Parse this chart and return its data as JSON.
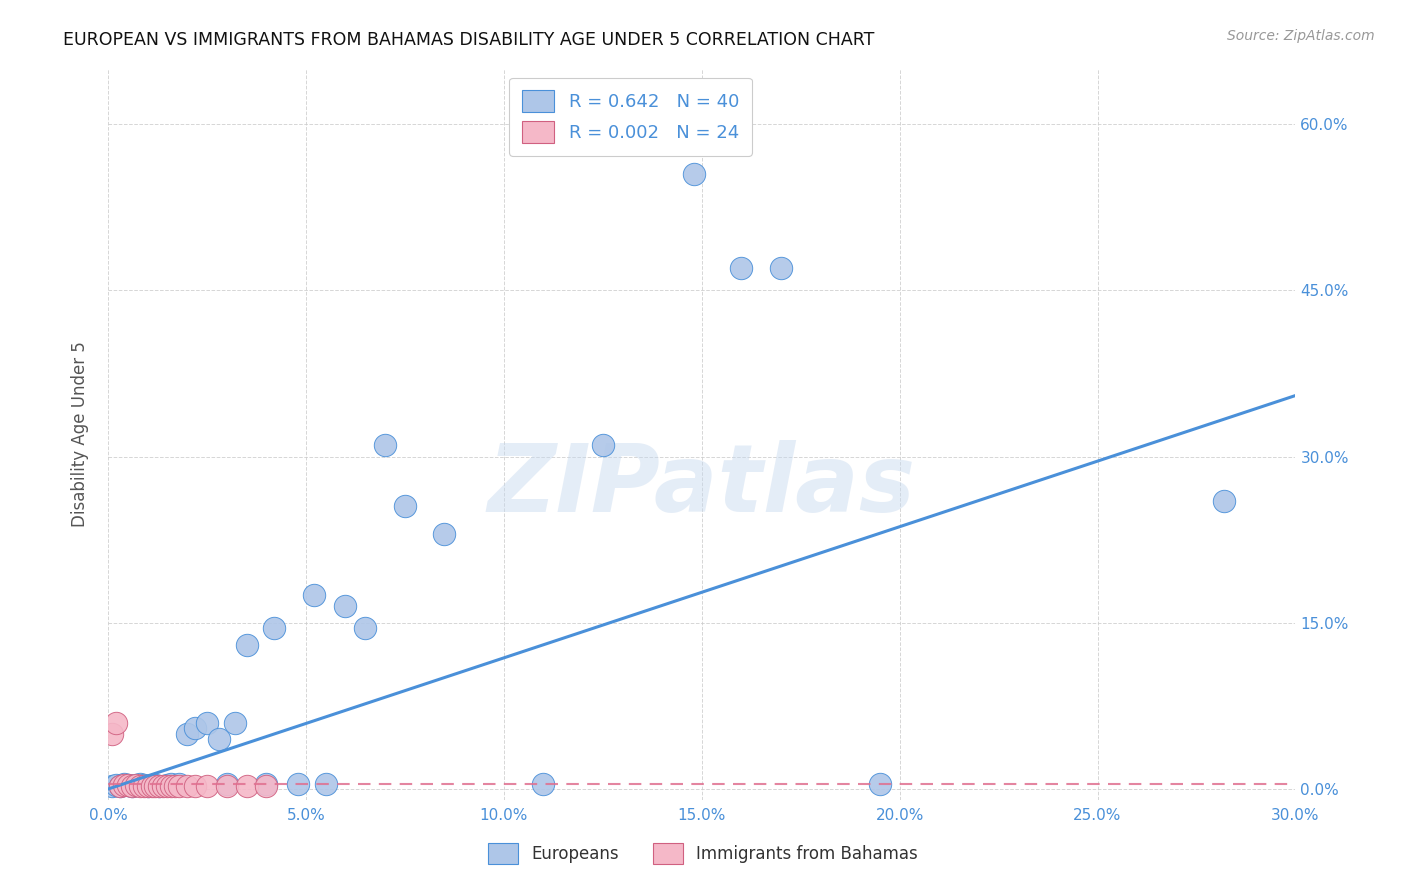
{
  "title": "EUROPEAN VS IMMIGRANTS FROM BAHAMAS DISABILITY AGE UNDER 5 CORRELATION CHART",
  "source": "Source: ZipAtlas.com",
  "ylabel": "Disability Age Under 5",
  "xlim": [
    0.0,
    0.3
  ],
  "ylim": [
    -0.01,
    0.65
  ],
  "xticks": [
    0.0,
    0.05,
    0.1,
    0.15,
    0.2,
    0.25,
    0.3
  ],
  "yticks": [
    0.0,
    0.15,
    0.3,
    0.45,
    0.6
  ],
  "ytick_labels_right": [
    "0.0%",
    "15.0%",
    "30.0%",
    "45.0%",
    "60.0%"
  ],
  "xtick_labels": [
    "0.0%",
    "5.0%",
    "10.0%",
    "15.0%",
    "20.0%",
    "25.0%",
    "30.0%"
  ],
  "blue_color": "#aec6e8",
  "pink_color": "#f5b8c8",
  "line_color": "#4a90d9",
  "pink_line_color": "#e07090",
  "R_blue": 0.642,
  "N_blue": 40,
  "R_pink": 0.002,
  "N_pink": 24,
  "europeans_x": [
    0.001,
    0.002,
    0.003,
    0.004,
    0.005,
    0.006,
    0.007,
    0.008,
    0.009,
    0.01,
    0.011,
    0.012,
    0.013,
    0.015,
    0.016,
    0.018,
    0.02,
    0.022,
    0.025,
    0.028,
    0.03,
    0.032,
    0.035,
    0.04,
    0.042,
    0.048,
    0.052,
    0.055,
    0.06,
    0.065,
    0.07,
    0.075,
    0.085,
    0.11,
    0.125,
    0.148,
    0.16,
    0.17,
    0.195,
    0.282
  ],
  "europeans_y": [
    0.003,
    0.004,
    0.003,
    0.005,
    0.004,
    0.003,
    0.004,
    0.005,
    0.004,
    0.003,
    0.004,
    0.004,
    0.003,
    0.004,
    0.005,
    0.005,
    0.05,
    0.055,
    0.06,
    0.045,
    0.005,
    0.06,
    0.13,
    0.005,
    0.145,
    0.005,
    0.175,
    0.005,
    0.165,
    0.145,
    0.31,
    0.255,
    0.23,
    0.005,
    0.31,
    0.555,
    0.47,
    0.47,
    0.005,
    0.26
  ],
  "bahamas_x": [
    0.001,
    0.002,
    0.003,
    0.004,
    0.005,
    0.006,
    0.007,
    0.008,
    0.009,
    0.01,
    0.011,
    0.012,
    0.013,
    0.014,
    0.015,
    0.016,
    0.017,
    0.018,
    0.02,
    0.022,
    0.025,
    0.03,
    0.035,
    0.04
  ],
  "bahamas_y": [
    0.05,
    0.06,
    0.003,
    0.004,
    0.004,
    0.003,
    0.004,
    0.003,
    0.003,
    0.003,
    0.003,
    0.003,
    0.003,
    0.003,
    0.003,
    0.003,
    0.003,
    0.003,
    0.003,
    0.003,
    0.003,
    0.003,
    0.003,
    0.003
  ],
  "eu_line_x": [
    0.0,
    0.3
  ],
  "eu_line_y": [
    0.0,
    0.355
  ],
  "bah_line_y": [
    0.005,
    0.005
  ],
  "watermark_text": "ZIPatlas",
  "background_color": "#ffffff",
  "grid_color": "#cccccc"
}
